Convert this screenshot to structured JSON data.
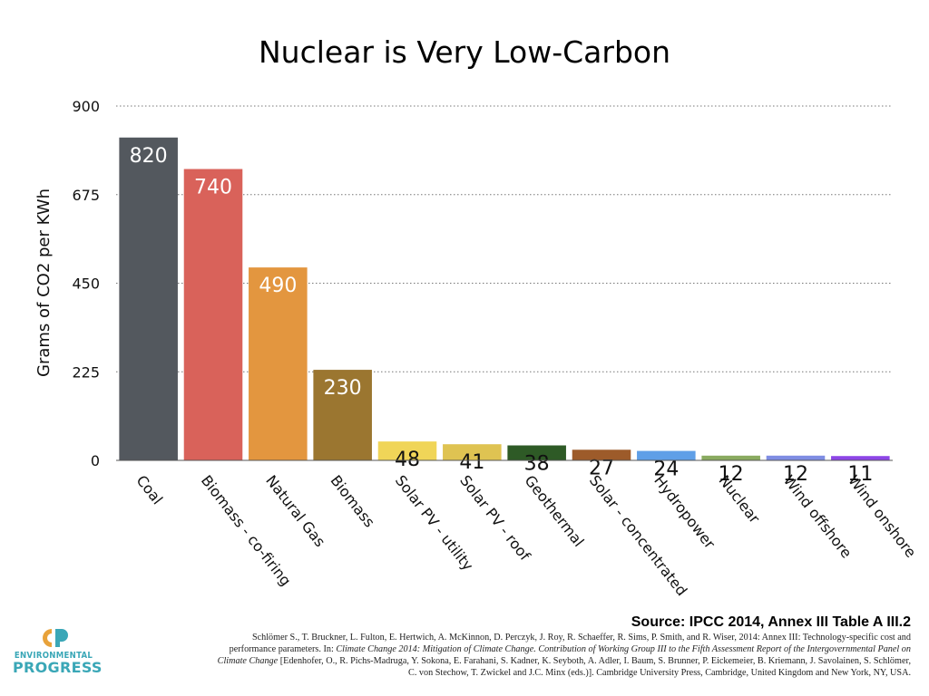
{
  "chart_data": {
    "type": "bar",
    "title": "Nuclear is Very Low-Carbon",
    "xlabel": "",
    "ylabel": "Grams of CO2 per KWh",
    "ylim": [
      0,
      900
    ],
    "yticks": [
      0,
      225,
      450,
      675,
      900
    ],
    "ytick_labels": [
      "0",
      "225",
      "450",
      "675",
      "900"
    ],
    "grid": true,
    "categories": [
      "Coal",
      "Biomass - co-firing",
      "Natural Gas",
      "Biomass",
      "Solar PV - utility",
      "Solar PV - roof",
      "Geothermal",
      "Solar - concentrated",
      "Hydropower",
      "Nuclear",
      "Wind offshore",
      "Wind onshore"
    ],
    "values": [
      820,
      740,
      490,
      230,
      48,
      41,
      38,
      27,
      24,
      12,
      12,
      11
    ],
    "value_labels": [
      "820",
      "740",
      "490",
      "230",
      "48",
      "41",
      "38",
      "27",
      "24",
      "12",
      "12",
      "11"
    ],
    "colors": [
      "#53585e",
      "#d9625a",
      "#e3963f",
      "#9b7630",
      "#f0d558",
      "#dfc352",
      "#2e5a26",
      "#9d5b2a",
      "#5f9fe7",
      "#8aab60",
      "#7f8de3",
      "#8d46e6"
    ],
    "value_label_colors": [
      "#ffffff",
      "#ffffff",
      "#ffffff",
      "#ffffff",
      "#111111",
      "#111111",
      "#111111",
      "#111111",
      "#111111",
      "#111111",
      "#111111",
      "#111111"
    ]
  },
  "source": {
    "heading": "Source: IPCC 2014, Annex III Table A III.2",
    "citation_line1": "Schlömer S., T. Bruckner, L. Fulton, E. Hertwich, A. McKinnon, D. Perczyk, J. Roy, R. Schaeffer, R. Sims, P. Smith, and R. Wiser, 2014: Annex III: Technology-specific cost and",
    "citation_line2_a": "performance parameters. In: ",
    "citation_line2_b": "Climate Change 2014: Mitigation of Climate Change. Contribution of Working Group III to the Fifth Assessment Report of the Intergovernmental Panel on",
    "citation_line3_a": "Climate Change",
    "citation_line3_b": " [Edenhofer, O., R. Pichs-Madruga, Y. Sokona, E. Farahani, S. Kadner, K. Seyboth, A. Adler, I. Baum, S. Brunner, P. Eickemeier, B. Kriemann, J. Savolainen, S. Schlömer,",
    "citation_line4": "C. von Stechow, T. Zwickel and J.C. Minx (eds.)]. Cambridge University Press, Cambridge, United Kingdom and New York, NY, USA."
  },
  "logo": {
    "line1": "ENVIRONMENTAL",
    "line2": "PROGRESS",
    "primary_color": "#3aa7b7",
    "accent_color": "#e8a23a"
  }
}
